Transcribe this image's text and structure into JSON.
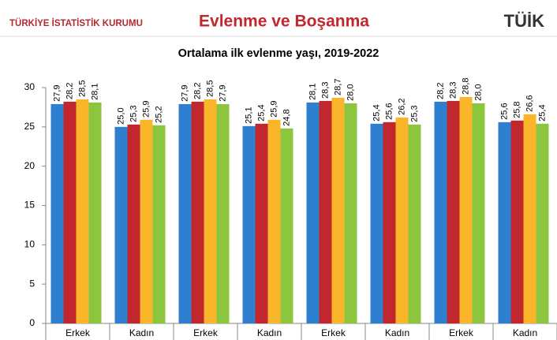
{
  "header": {
    "org": "TÜRKİYE İSTATİSTİK KURUMU",
    "title": "Evlenme ve Boşanma",
    "logo": "TÜİK"
  },
  "chart_data": {
    "type": "bar",
    "title": "Ortalama ilk evlenme yaşı, 2019-2022",
    "categories": [
      "Erkek",
      "Kadın",
      "Erkek",
      "Kadın",
      "Erkek",
      "Kadın",
      "Erkek",
      "Kadın"
    ],
    "series": [
      {
        "color": "#2f7fd0",
        "values": [
          27.9,
          25.0,
          27.9,
          25.1,
          28.1,
          25.4,
          28.2,
          25.6
        ],
        "value_labels": [
          "27,9",
          "25,0",
          "27,9",
          "25,1",
          "28,1",
          "25,4",
          "28,2",
          "25,6"
        ]
      },
      {
        "color": "#c1272d",
        "values": [
          28.2,
          25.3,
          28.2,
          25.4,
          28.3,
          25.6,
          28.3,
          25.8
        ],
        "value_labels": [
          "28,2",
          "25,3",
          "28,2",
          "25,4",
          "28,3",
          "25,6",
          "28,3",
          "25,8"
        ]
      },
      {
        "color": "#fbb52a",
        "values": [
          28.5,
          25.9,
          28.5,
          25.9,
          28.7,
          26.2,
          28.8,
          26.6
        ],
        "value_labels": [
          "28,5",
          "25,9",
          "28,5",
          "25,9",
          "28,7",
          "26,2",
          "28,8",
          "26,6"
        ]
      },
      {
        "color": "#8cc63f",
        "values": [
          28.1,
          25.2,
          27.9,
          24.8,
          28.0,
          25.3,
          28.0,
          25.4
        ],
        "value_labels": [
          "28,1",
          "25,2",
          "27,9",
          "24,8",
          "28,0",
          "25,3",
          "28,0",
          "25,4"
        ]
      }
    ],
    "ylim": [
      0,
      30
    ],
    "yticks": [
      0,
      5,
      10,
      15,
      20,
      25,
      30
    ],
    "grid": false
  }
}
